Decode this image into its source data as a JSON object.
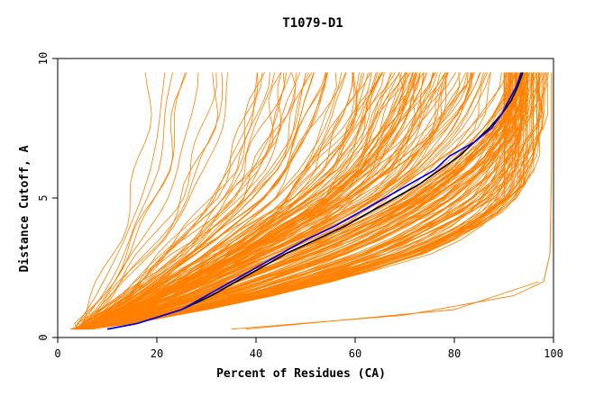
{
  "chart_data": {
    "type": "line",
    "title": "T1079-D1",
    "xlabel": "Percent of Residues (CA)",
    "ylabel": "Distance Cutoff, A",
    "xlim": [
      0,
      100
    ],
    "ylim": [
      0,
      10
    ],
    "x_ticks": [
      0,
      20,
      40,
      60,
      80,
      100
    ],
    "y_ticks": [
      0,
      5,
      10
    ],
    "grid": false,
    "colors": {
      "bundle": "#ff8000",
      "black": "#000000",
      "blue": "#0000ff"
    },
    "series": [
      {
        "color": "#000000",
        "y": [
          0.3,
          0.5,
          1,
          1.5,
          2,
          2.5,
          3,
          3.5,
          4,
          4.5,
          5,
          5.5,
          6,
          6.5,
          7,
          7.5,
          8,
          8.5,
          9,
          9.5
        ],
        "x": [
          10,
          16,
          25,
          31,
          36,
          41,
          46,
          52,
          58,
          63,
          68,
          73,
          77,
          81,
          84,
          87,
          89.5,
          91.5,
          92.8,
          93.8
        ]
      },
      {
        "color": "#0000ff",
        "y": [
          0.3,
          0.5,
          1,
          1.5,
          2,
          2.5,
          3,
          3.5,
          4,
          4.5,
          5,
          5.5,
          6,
          6.5,
          7,
          7.5,
          8,
          8.5,
          9,
          9.5
        ],
        "x": [
          10,
          16,
          25,
          30,
          35,
          40,
          45,
          50,
          56,
          61,
          66,
          71,
          76,
          79,
          84,
          87.5,
          89.5,
          91,
          92.5,
          93.5
        ]
      }
    ],
    "bundle_profile": {
      "y": [
        0.3,
        0.5,
        1,
        1.5,
        2,
        2.5,
        3,
        3.5,
        4,
        4.5,
        5,
        5.5,
        6,
        6.5,
        7,
        7.5,
        8,
        8.5,
        9,
        9.5
      ],
      "center": [
        4,
        9,
        18,
        26,
        33,
        40,
        47,
        54,
        60,
        66,
        71,
        75,
        79,
        82,
        85,
        87.5,
        89.5,
        91,
        92.5,
        93.5
      ],
      "best": [
        6,
        14,
        30,
        45,
        57,
        67,
        76,
        82,
        87,
        91,
        94,
        96,
        97,
        98,
        98.5,
        99,
        99.3,
        99.5,
        99.6,
        99.7
      ]
    },
    "outlier_lines": [
      {
        "y": [
          0.3,
          0.8,
          1.5,
          2.0
        ],
        "x": [
          35,
          70,
          92,
          98
        ]
      },
      {
        "y": [
          0.3,
          1.0,
          2.0
        ],
        "x": [
          38,
          80,
          97
        ]
      }
    ]
  }
}
